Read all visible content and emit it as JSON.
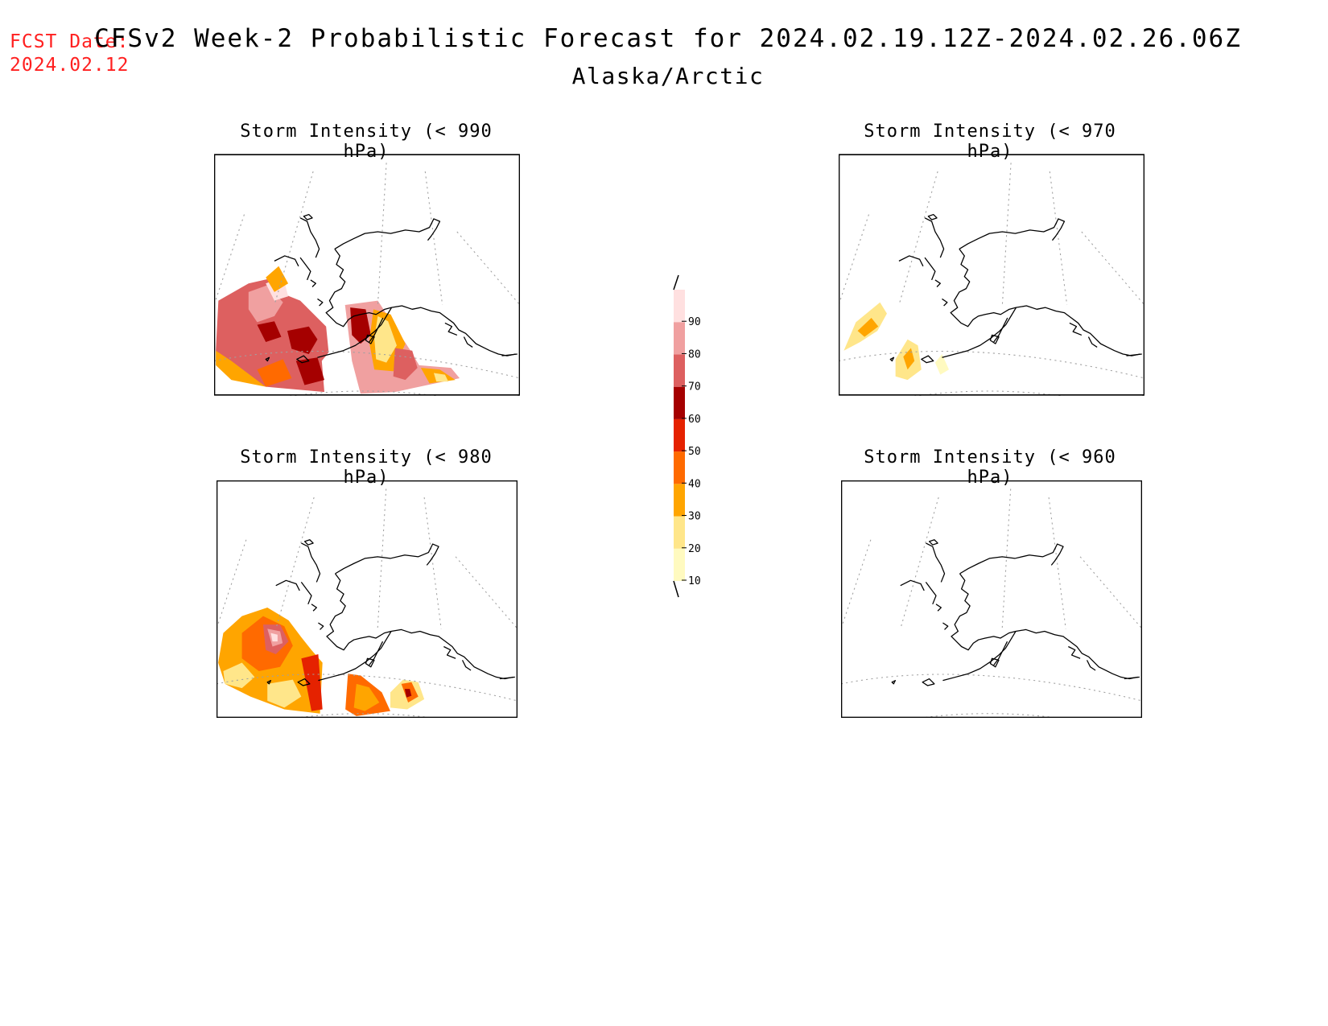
{
  "header": {
    "fcst_label": "FCST Date:",
    "fcst_date": "2024.02.12",
    "title": "CFSv2 Week-2 Probabilistic Forecast for 2024.02.19.12Z-2024.02.26.06Z",
    "subtitle": "Alaska/Arctic"
  },
  "panels": [
    {
      "title": "Storm Intensity (< 990 hPa)"
    },
    {
      "title": "Storm Intensity (< 970 hPa)"
    },
    {
      "title": "Storm Intensity (< 980 hPa)"
    },
    {
      "title": "Storm Intensity (< 960 hPa)"
    }
  ],
  "legend": {
    "levels": [
      "10",
      "20",
      "30",
      "40",
      "50",
      "60",
      "70",
      "80",
      "90"
    ],
    "colors": [
      "#fffac0",
      "#ffe68a",
      "#ffa500",
      "#ff6a00",
      "#e52200",
      "#a50000",
      "#dd6060",
      "#f0a0a0",
      "#ffe0e0"
    ]
  },
  "colors": {
    "fcst": "#ff2020",
    "coast": "#000000",
    "grid": "#9a9a9a"
  }
}
